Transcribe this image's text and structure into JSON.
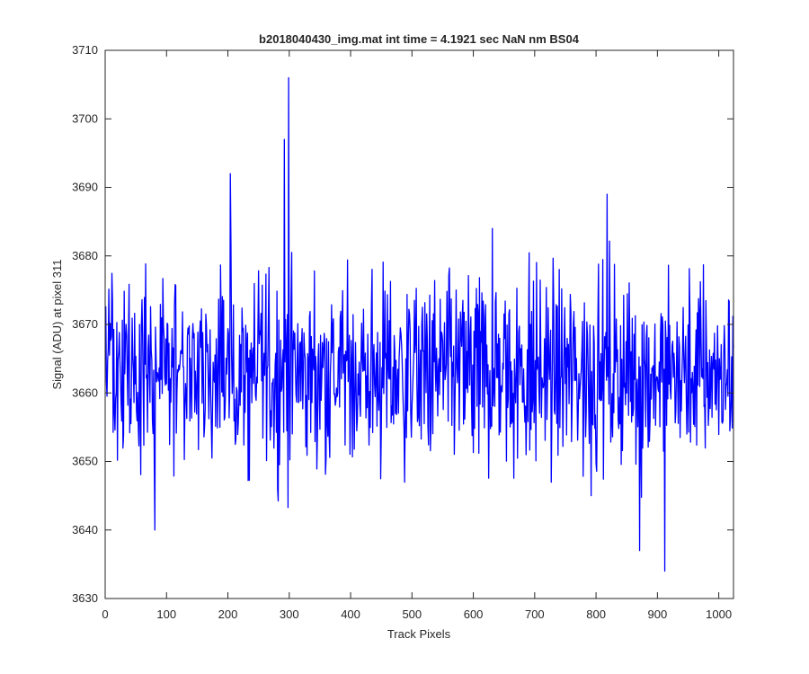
{
  "chart_data": {
    "type": "line",
    "title": "b2018040430_img.mat int time = 4.1921 sec  NaN nm BS04",
    "xlabel": "Track Pixels",
    "ylabel": "Signal (ADU) at pixel 311",
    "xlim": [
      0,
      1024
    ],
    "ylim": [
      3630,
      3710
    ],
    "xticks": [
      0,
      100,
      200,
      300,
      400,
      500,
      600,
      700,
      800,
      900,
      1000
    ],
    "yticks": [
      3630,
      3640,
      3650,
      3660,
      3670,
      3680,
      3690,
      3700,
      3710
    ],
    "grid": false,
    "series": [
      {
        "color": "#0000ff",
        "x_start": 1,
        "x_step": 1,
        "count": 1024,
        "mean": 3663,
        "sample_min": 3634,
        "sample_max": 3706,
        "visible_extremes": [
          {
            "x": 81,
            "y": 3640
          },
          {
            "x": 204,
            "y": 3692
          },
          {
            "x": 292,
            "y": 3697
          },
          {
            "x": 299,
            "y": 3706
          },
          {
            "x": 631,
            "y": 3684
          },
          {
            "x": 818,
            "y": 3689
          },
          {
            "x": 871,
            "y": 3637
          },
          {
            "x": 912,
            "y": 3634
          }
        ]
      }
    ]
  }
}
